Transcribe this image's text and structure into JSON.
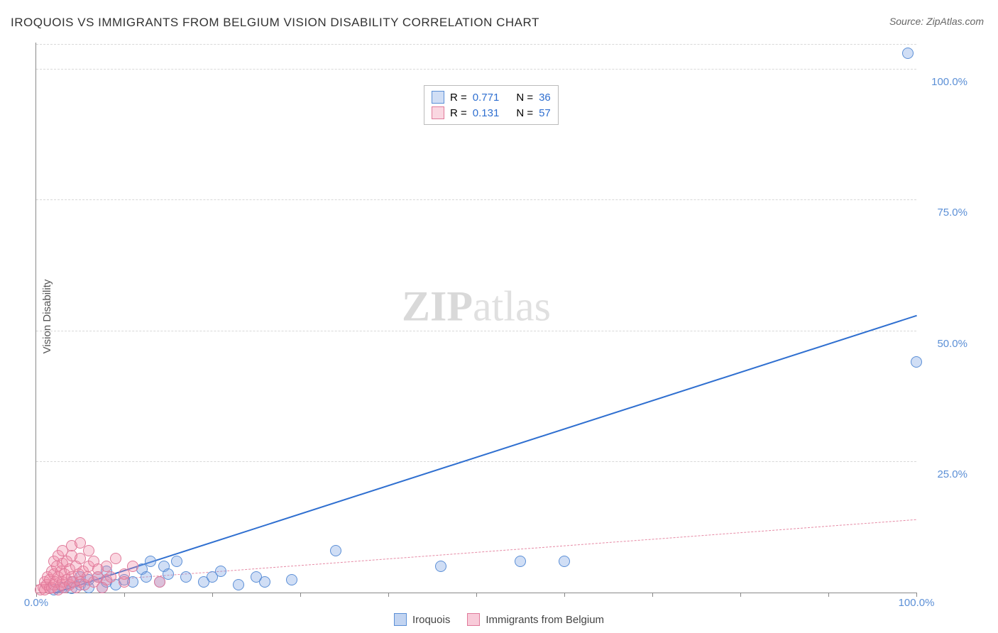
{
  "title": "IROQUOIS VS IMMIGRANTS FROM BELGIUM VISION DISABILITY CORRELATION CHART",
  "source": "Source: ZipAtlas.com",
  "ylabel": "Vision Disability",
  "watermark_a": "ZIP",
  "watermark_b": "atlas",
  "chart": {
    "type": "scatter",
    "xlim": [
      0,
      100
    ],
    "ylim": [
      0,
      105
    ],
    "xtick_vals": [
      0,
      10,
      20,
      30,
      40,
      50,
      60,
      70,
      80,
      90,
      100
    ],
    "xtick_labels_shown": {
      "0": "0.0%",
      "100": "100.0%"
    },
    "ytick_vals": [
      25,
      50,
      75,
      100
    ],
    "ytick_labels": [
      "25.0%",
      "50.0%",
      "75.0%",
      "100.0%"
    ],
    "grid_color": "#d8d8d8",
    "axis_color": "#888888",
    "background": "#ffffff",
    "label_fontsize": 15,
    "title_fontsize": 17,
    "tick_color_a": "#5b8fd6",
    "series": [
      {
        "name": "Iroquois",
        "fill": "rgba(120,160,225,0.35)",
        "stroke": "#5b8fd6",
        "marker_radius": 7,
        "trend": {
          "x1": 2,
          "y1": 0,
          "x2": 100,
          "y2": 53,
          "color": "#2f6fd0",
          "width": 2,
          "dash": "solid"
        },
        "R": "0.771",
        "N": "36",
        "points": [
          [
            2,
            0.5
          ],
          [
            3,
            1
          ],
          [
            4,
            0.8
          ],
          [
            4,
            2
          ],
          [
            5,
            1.5
          ],
          [
            5,
            3
          ],
          [
            6,
            1
          ],
          [
            6,
            2.5
          ],
          [
            7,
            3
          ],
          [
            7.5,
            1
          ],
          [
            8,
            2
          ],
          [
            8,
            4
          ],
          [
            9,
            1.5
          ],
          [
            10,
            2.5
          ],
          [
            11,
            2
          ],
          [
            12,
            4.5
          ],
          [
            12.5,
            3
          ],
          [
            13,
            6
          ],
          [
            14,
            2
          ],
          [
            14.5,
            5
          ],
          [
            15,
            3.5
          ],
          [
            16,
            6
          ],
          [
            17,
            3
          ],
          [
            19,
            2
          ],
          [
            20,
            3
          ],
          [
            21,
            4
          ],
          [
            23,
            1.5
          ],
          [
            25,
            3
          ],
          [
            26,
            2
          ],
          [
            29,
            2.5
          ],
          [
            34,
            8
          ],
          [
            46,
            5
          ],
          [
            55,
            6
          ],
          [
            60,
            6
          ],
          [
            100,
            44
          ],
          [
            99,
            103
          ]
        ]
      },
      {
        "name": "Immigrants from Belgium",
        "fill": "rgba(240,140,170,0.35)",
        "stroke": "#e07a9a",
        "marker_radius": 7,
        "trend": {
          "x1": 0,
          "y1": 1.5,
          "x2": 100,
          "y2": 14,
          "color": "#e68aa5",
          "width": 1,
          "dash": "6 5"
        },
        "R": "0.131",
        "N": "57",
        "points": [
          [
            0.5,
            0.5
          ],
          [
            0.8,
            1
          ],
          [
            1,
            0.5
          ],
          [
            1,
            2
          ],
          [
            1.2,
            1.5
          ],
          [
            1.3,
            3
          ],
          [
            1.5,
            0.8
          ],
          [
            1.5,
            2.5
          ],
          [
            1.8,
            1
          ],
          [
            1.8,
            4
          ],
          [
            2,
            1.5
          ],
          [
            2,
            3.5
          ],
          [
            2,
            6
          ],
          [
            2.2,
            2
          ],
          [
            2.3,
            5
          ],
          [
            2.5,
            0.5
          ],
          [
            2.5,
            3
          ],
          [
            2.5,
            7
          ],
          [
            2.8,
            1.5
          ],
          [
            2.8,
            4
          ],
          [
            3,
            2
          ],
          [
            3,
            5.5
          ],
          [
            3,
            8
          ],
          [
            3.2,
            1
          ],
          [
            3.2,
            3.5
          ],
          [
            3.5,
            2.5
          ],
          [
            3.5,
            6
          ],
          [
            3.8,
            1.5
          ],
          [
            3.8,
            4.5
          ],
          [
            4,
            3
          ],
          [
            4,
            7
          ],
          [
            4,
            9
          ],
          [
            4.2,
            2
          ],
          [
            4.5,
            5
          ],
          [
            4.5,
            1
          ],
          [
            4.8,
            3.5
          ],
          [
            5,
            2
          ],
          [
            5,
            6.5
          ],
          [
            5,
            9.5
          ],
          [
            5.3,
            4
          ],
          [
            5.5,
            1.5
          ],
          [
            5.8,
            3
          ],
          [
            6,
            5
          ],
          [
            6,
            8
          ],
          [
            6.5,
            2
          ],
          [
            6.5,
            6
          ],
          [
            7,
            3
          ],
          [
            7,
            4.5
          ],
          [
            7.5,
            1
          ],
          [
            8,
            2.5
          ],
          [
            8,
            5
          ],
          [
            8.5,
            3
          ],
          [
            9,
            6.5
          ],
          [
            10,
            3.5
          ],
          [
            10,
            2
          ],
          [
            11,
            5
          ],
          [
            14,
            2
          ]
        ]
      }
    ]
  },
  "legend_top": {
    "R_label": "R =",
    "N_label": "N ="
  },
  "legend_bottom": [
    {
      "label": "Iroquois",
      "fill": "rgba(120,160,225,0.45)",
      "stroke": "#5b8fd6"
    },
    {
      "label": "Immigrants from Belgium",
      "fill": "rgba(240,140,170,0.45)",
      "stroke": "#e07a9a"
    }
  ]
}
